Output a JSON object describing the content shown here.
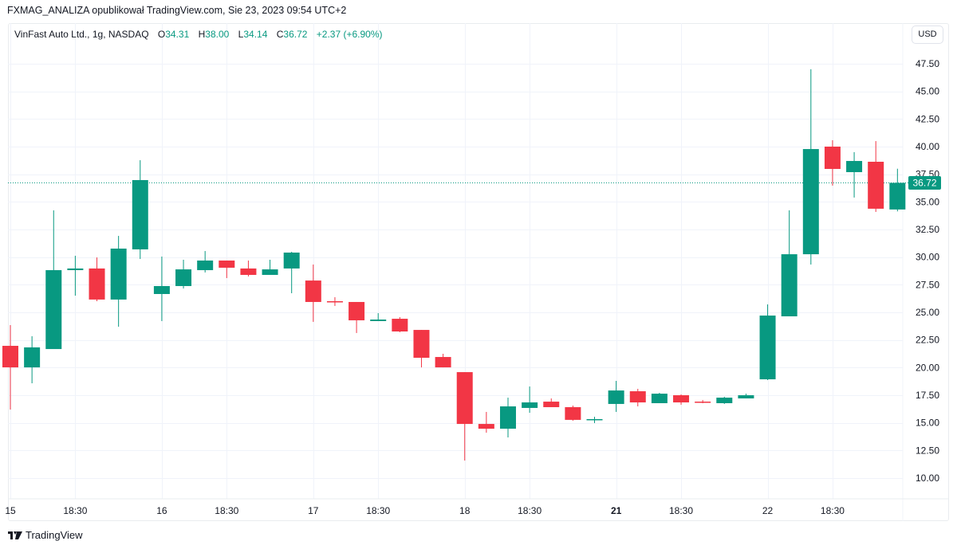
{
  "header": {
    "publisher_line": "FXMAG_ANALIZA opublikował TradingView.com, Sie 23, 2023 09:54 UTC+2"
  },
  "legend": {
    "symbol": "VinFast Auto Ltd., 1g, NASDAQ",
    "open_label": "O",
    "open": "34.31",
    "high_label": "H",
    "high": "38.00",
    "low_label": "L",
    "low": "34.14",
    "close_label": "C",
    "close": "36.72",
    "change": "+2.37 (+6.90%)"
  },
  "price_axis": {
    "currency_button": "USD",
    "current_price_label": "36.72"
  },
  "branding": {
    "name": "TradingView"
  },
  "colors": {
    "up": "#089981",
    "down": "#F23645",
    "grid": "#f0f3fa",
    "text": "#131722"
  },
  "chart_data": {
    "type": "candlestick",
    "title": "VinFast Auto Ltd., 1g, NASDAQ",
    "xlabel": "",
    "ylabel": "USD",
    "ylim": [
      8.5,
      49.5
    ],
    "yticks": [
      "10.00",
      "12.50",
      "15.00",
      "17.50",
      "20.00",
      "22.50",
      "25.00",
      "27.50",
      "30.00",
      "32.50",
      "35.00",
      "37.50",
      "40.00",
      "42.50",
      "45.00",
      "47.50"
    ],
    "xticks": [
      {
        "label": "15",
        "index": 0,
        "bold": false
      },
      {
        "label": "18:30",
        "index": 3,
        "bold": false
      },
      {
        "label": "16",
        "index": 7,
        "bold": false
      },
      {
        "label": "18:30",
        "index": 10,
        "bold": false
      },
      {
        "label": "17",
        "index": 14,
        "bold": false
      },
      {
        "label": "18:30",
        "index": 17,
        "bold": false
      },
      {
        "label": "18",
        "index": 21,
        "bold": false
      },
      {
        "label": "18:30",
        "index": 24,
        "bold": false
      },
      {
        "label": "21",
        "index": 28,
        "bold": true
      },
      {
        "label": "18:30",
        "index": 31,
        "bold": false
      },
      {
        "label": "22",
        "index": 35,
        "bold": false
      },
      {
        "label": "18:30",
        "index": 38,
        "bold": false
      }
    ],
    "current_price": 36.72,
    "candles": [
      {
        "o": 21.97,
        "h": 23.85,
        "l": 16.2,
        "c": 20.02
      },
      {
        "o": 20.02,
        "h": 22.84,
        "l": 18.58,
        "c": 21.83
      },
      {
        "o": 21.68,
        "h": 34.23,
        "l": 21.68,
        "c": 28.82
      },
      {
        "o": 28.82,
        "h": 30.12,
        "l": 26.51,
        "c": 28.97
      },
      {
        "o": 28.97,
        "h": 29.97,
        "l": 26.01,
        "c": 26.16
      },
      {
        "o": 26.16,
        "h": 31.92,
        "l": 23.7,
        "c": 30.77
      },
      {
        "o": 30.7,
        "h": 38.77,
        "l": 29.83,
        "c": 36.97
      },
      {
        "o": 26.66,
        "h": 30.05,
        "l": 24.21,
        "c": 27.38
      },
      {
        "o": 27.38,
        "h": 29.76,
        "l": 27.16,
        "c": 28.89
      },
      {
        "o": 28.82,
        "h": 30.55,
        "l": 28.61,
        "c": 29.69
      },
      {
        "o": 29.69,
        "h": 29.69,
        "l": 28.1,
        "c": 29.04
      },
      {
        "o": 28.97,
        "h": 29.69,
        "l": 28.25,
        "c": 28.39
      },
      {
        "o": 28.39,
        "h": 29.76,
        "l": 28.39,
        "c": 28.89
      },
      {
        "o": 28.97,
        "h": 30.48,
        "l": 26.73,
        "c": 30.41
      },
      {
        "o": 27.88,
        "h": 29.33,
        "l": 24.14,
        "c": 25.94
      },
      {
        "o": 26.01,
        "h": 26.37,
        "l": 25.58,
        "c": 25.94
      },
      {
        "o": 25.94,
        "h": 25.94,
        "l": 23.13,
        "c": 24.28
      },
      {
        "o": 24.21,
        "h": 24.93,
        "l": 24.21,
        "c": 24.35
      },
      {
        "o": 24.42,
        "h": 24.57,
        "l": 23.2,
        "c": 23.27
      },
      {
        "o": 23.41,
        "h": 23.41,
        "l": 20.02,
        "c": 20.89
      },
      {
        "o": 20.96,
        "h": 21.25,
        "l": 20.02,
        "c": 20.02
      },
      {
        "o": 19.59,
        "h": 19.59,
        "l": 11.59,
        "c": 14.9
      },
      {
        "o": 14.9,
        "h": 15.99,
        "l": 14.11,
        "c": 14.47
      },
      {
        "o": 14.47,
        "h": 17.28,
        "l": 13.68,
        "c": 16.49
      },
      {
        "o": 16.35,
        "h": 18.29,
        "l": 15.91,
        "c": 16.85
      },
      {
        "o": 16.92,
        "h": 17.21,
        "l": 16.42,
        "c": 16.42
      },
      {
        "o": 16.42,
        "h": 16.56,
        "l": 15.19,
        "c": 15.27
      },
      {
        "o": 15.27,
        "h": 15.55,
        "l": 14.98,
        "c": 15.34
      },
      {
        "o": 16.71,
        "h": 18.8,
        "l": 15.99,
        "c": 17.93
      },
      {
        "o": 17.86,
        "h": 18.08,
        "l": 16.49,
        "c": 16.85
      },
      {
        "o": 16.78,
        "h": 17.72,
        "l": 16.78,
        "c": 17.64
      },
      {
        "o": 17.5,
        "h": 17.57,
        "l": 16.64,
        "c": 16.85
      },
      {
        "o": 16.92,
        "h": 17.07,
        "l": 16.78,
        "c": 16.85
      },
      {
        "o": 16.78,
        "h": 17.36,
        "l": 16.71,
        "c": 17.28
      },
      {
        "o": 17.21,
        "h": 17.64,
        "l": 17.21,
        "c": 17.5
      },
      {
        "o": 18.94,
        "h": 25.72,
        "l": 18.87,
        "c": 24.71
      },
      {
        "o": 24.64,
        "h": 34.23,
        "l": 24.64,
        "c": 30.26
      },
      {
        "o": 30.26,
        "h": 47.0,
        "l": 29.33,
        "c": 39.78
      },
      {
        "o": 40.0,
        "h": 40.58,
        "l": 36.47,
        "c": 37.98
      },
      {
        "o": 37.69,
        "h": 39.5,
        "l": 35.39,
        "c": 38.7
      },
      {
        "o": 38.63,
        "h": 40.5,
        "l": 34.09,
        "c": 34.38
      },
      {
        "o": 34.31,
        "h": 38.0,
        "l": 34.14,
        "c": 36.72
      }
    ]
  }
}
